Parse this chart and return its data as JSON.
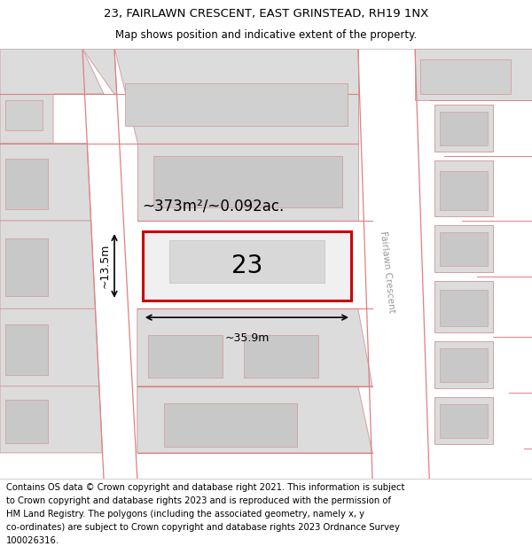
{
  "title_line1": "23, FAIRLAWN CRESCENT, EAST GRINSTEAD, RH19 1NX",
  "title_line2": "Map shows position and indicative extent of the property.",
  "footer_lines": [
    "Contains OS data © Crown copyright and database right 2021. This information is subject",
    "to Crown copyright and database rights 2023 and is reproduced with the permission of",
    "HM Land Registry. The polygons (including the associated geometry, namely x, y",
    "co-ordinates) are subject to Crown copyright and database rights 2023 Ordnance Survey",
    "100026316."
  ],
  "map_bg_color": "#f2f2f2",
  "road_color": "#ffffff",
  "plot_outline_color": "#cc0000",
  "building_fill_color": "#dcdcdc",
  "building_outline_color": "#d4a0a0",
  "pink_line_color": "#e08080",
  "street_label": "Fairlawn Crescent",
  "plot_number": "23",
  "area_label": "~373m²/~0.092ac.",
  "width_label": "~35.9m",
  "height_label": "~13.5m",
  "title_fontsize": 9.5,
  "subtitle_fontsize": 8.5,
  "footer_fontsize": 7.2,
  "number_fontsize": 20,
  "area_fontsize": 12,
  "dim_fontsize": 9
}
